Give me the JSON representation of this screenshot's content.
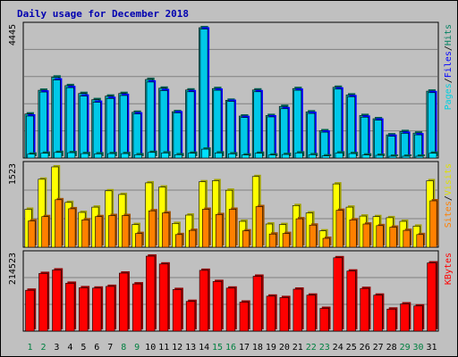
{
  "chart_data": {
    "type": "bar",
    "title": "Daily usage for December 2018",
    "categories": [
      "1",
      "2",
      "3",
      "4",
      "5",
      "6",
      "7",
      "8",
      "9",
      "10",
      "11",
      "12",
      "13",
      "14",
      "15",
      "16",
      "17",
      "18",
      "19",
      "20",
      "21",
      "22",
      "23",
      "24",
      "25",
      "26",
      "27",
      "28",
      "29",
      "30",
      "31"
    ],
    "weekend_days": [
      "1",
      "2",
      "8",
      "9",
      "15",
      "16",
      "22",
      "23",
      "29",
      "30"
    ],
    "panels": [
      {
        "name": "pages-files-hits",
        "axis_max_label": "4445",
        "ylim": [
          0,
          4445
        ],
        "legend": [
          "Pages",
          "/",
          "Files",
          "/",
          "Hits"
        ],
        "series": [
          {
            "name": "Hits",
            "values": [
              1500,
              2310,
              2760,
              2470,
              2200,
              1990,
              2110,
              2200,
              1560,
              2680,
              2380,
              1580,
              2320,
              4445,
              2370,
              1970,
              1430,
              2320,
              1450,
              1760,
              2370,
              1570,
              930,
              2410,
              2150,
              1450,
              1340,
              790,
              900,
              850,
              2280
            ]
          },
          {
            "name": "Files",
            "values": [
              1430,
              2250,
              2660,
              2400,
              2110,
              1900,
              2030,
              2130,
              1500,
              2590,
              2300,
              1540,
              2260,
              4400,
              2310,
              1930,
              1380,
              2260,
              1400,
              1680,
              2310,
              1520,
              880,
              2350,
              2090,
              1390,
              1290,
              740,
              840,
              790,
              2230
            ]
          },
          {
            "name": "Pages",
            "values": [
              130,
              160,
              190,
              180,
              150,
              140,
              150,
              150,
              110,
              190,
              170,
              110,
              160,
              300,
              170,
              140,
              100,
              160,
              100,
              120,
              170,
              110,
              70,
              170,
              150,
              100,
              90,
              60,
              60,
              60,
              160
            ]
          }
        ]
      },
      {
        "name": "visits-sites",
        "axis_max_label": "1523",
        "ylim": [
          0,
          1523
        ],
        "legend": [
          "Sites",
          "/",
          "Visits"
        ],
        "series": [
          {
            "name": "Visits",
            "values": [
              720,
              1290,
              1523,
              850,
              660,
              760,
              1070,
              1000,
              430,
              1220,
              1140,
              450,
              610,
              1240,
              1260,
              1080,
              490,
              1340,
              440,
              430,
              790,
              650,
              310,
              1200,
              760,
              590,
              580,
              560,
              490,
              400,
              1260
            ]
          },
          {
            "name": "Sites",
            "values": [
              500,
              580,
              900,
              730,
              520,
              580,
              600,
              600,
              260,
              690,
              650,
              240,
              320,
              720,
              620,
              720,
              310,
              770,
              250,
              260,
              540,
              420,
              170,
              700,
              520,
              440,
              410,
              380,
              320,
              240,
              880
            ]
          }
        ]
      },
      {
        "name": "kbytes",
        "axis_max_label": "214523",
        "ylim": [
          0,
          214523
        ],
        "legend": [
          "KBytes"
        ],
        "series": [
          {
            "name": "KBytes",
            "values": [
              117000,
              165000,
              175000,
              137000,
              124000,
              123000,
              128000,
              166000,
              135000,
              214523,
              192000,
              119000,
              85000,
              174000,
              142000,
              123000,
              83000,
              157000,
              100000,
              96000,
              120000,
              103000,
              65000,
              210000,
              172000,
              122000,
              103000,
              63000,
              78000,
              72000,
              195000
            ]
          }
        ]
      }
    ]
  },
  "colors": {
    "background": "#c0c0c0",
    "border": "#000000",
    "title": "#0000b0",
    "gridline": "#808080",
    "weekday_tick": "#008040",
    "weekend_tick": "#008040",
    "hits_dark": "#006050",
    "hits_face": "#00a0a0",
    "files": "#0000ff",
    "pages": "#00e0ff",
    "visits": "#ffff00",
    "sites": "#ff8000",
    "kbytes": "#ff0000",
    "legend_pages": "#00d0e0",
    "legend_files": "#0000ff",
    "legend_hits": "#008060",
    "legend_sites": "#ff8000",
    "legend_visits": "#e0e000",
    "legend_kbytes": "#ff0000"
  }
}
